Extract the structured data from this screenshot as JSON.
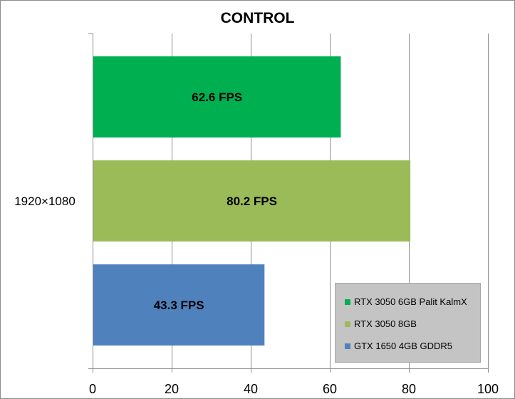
{
  "chart_data": {
    "type": "bar",
    "orientation": "horizontal",
    "title": "CONTROL",
    "categories": [
      "1920×1080"
    ],
    "series": [
      {
        "name": "RTX 3050 6GB Palit KalmX",
        "values": [
          62.6
        ],
        "label": "62.6 FPS",
        "color": "#00b050"
      },
      {
        "name": "RTX 3050 8GB",
        "values": [
          80.2
        ],
        "label": "80.2 FPS",
        "color": "#9bbb59"
      },
      {
        "name": "GTX 1650 4GB GDDR5",
        "values": [
          43.3
        ],
        "label": "43.3 FPS",
        "color": "#4f81bd"
      }
    ],
    "xlim": [
      0,
      100
    ],
    "xticks": [
      0,
      20,
      40,
      60,
      80,
      100
    ],
    "grid": true,
    "legend_position": "bottom-right"
  }
}
